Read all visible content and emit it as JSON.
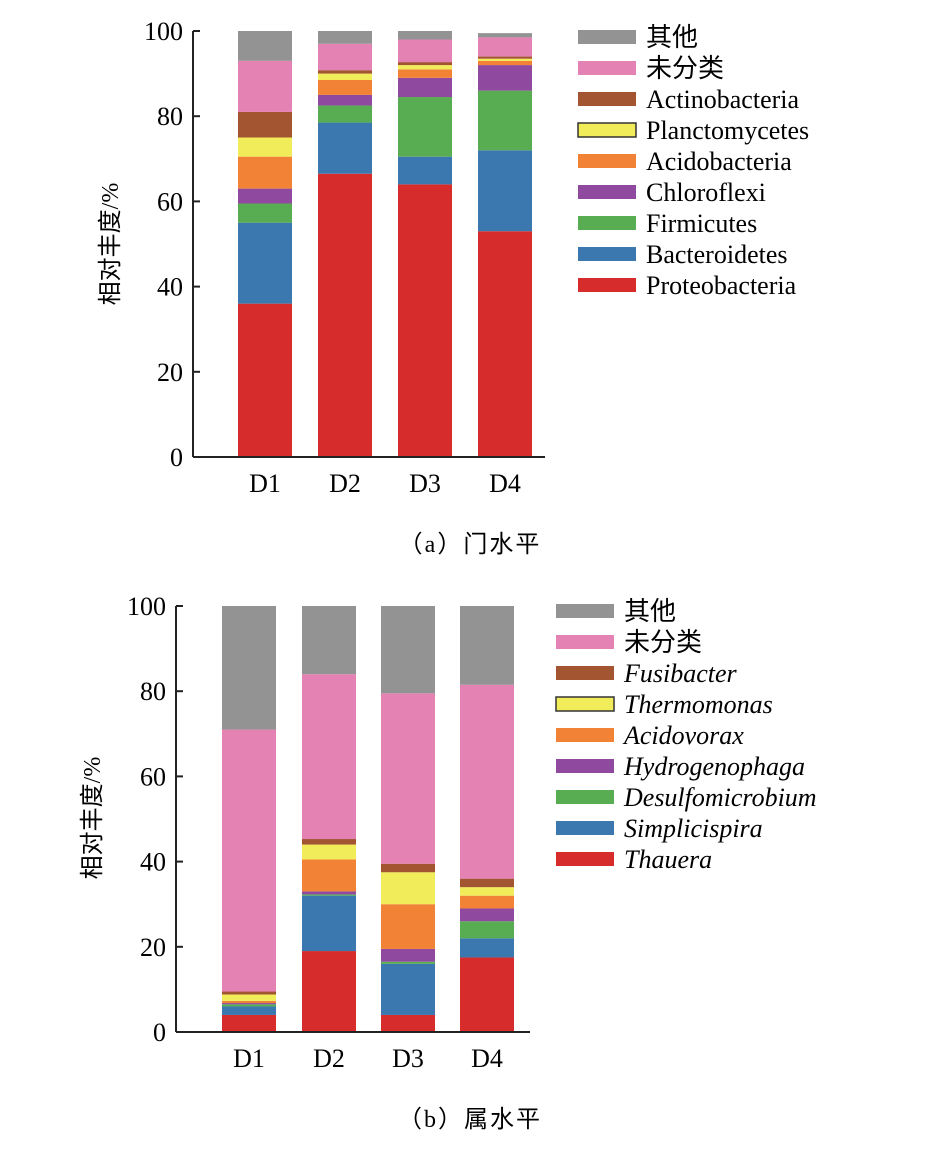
{
  "chart_data": [
    {
      "type": "bar",
      "stacked": true,
      "caption": "（a）门水平",
      "ylabel": "相对丰度/%",
      "ylim": [
        0,
        100
      ],
      "yticks": [
        0,
        20,
        40,
        60,
        80,
        100
      ],
      "categories": [
        "D1",
        "D2",
        "D3",
        "D4"
      ],
      "legend_position": "right",
      "italic_legend": false,
      "series": [
        {
          "name": "Proteobacteria",
          "color": "#d62c2c",
          "values": [
            36,
            66.5,
            64,
            53
          ]
        },
        {
          "name": "Bacteroidetes",
          "color": "#3c78b0",
          "values": [
            19,
            12,
            6.5,
            19
          ]
        },
        {
          "name": "Firmicutes",
          "color": "#58ac52",
          "values": [
            4.5,
            4,
            14,
            14
          ]
        },
        {
          "name": "Chloroflexi",
          "color": "#8f4aa0",
          "values": [
            3.5,
            2.5,
            4.5,
            6
          ]
        },
        {
          "name": "Acidobacteria",
          "color": "#f28235",
          "values": [
            7.5,
            3.5,
            2,
            1
          ]
        },
        {
          "name": "Planctomycetes",
          "color": "#f0ec5a",
          "values": [
            4.5,
            1.5,
            1,
            0.5
          ]
        },
        {
          "name": "Actinobacteria",
          "color": "#a35532",
          "values": [
            6,
            0.8,
            0.7,
            0.5
          ]
        },
        {
          "name": "未分类",
          "color": "#e582b4",
          "values": [
            12,
            6.2,
            5.3,
            4.5
          ]
        },
        {
          "name": "其他",
          "color": "#939393",
          "values": [
            7,
            3,
            2,
            1
          ]
        }
      ]
    },
    {
      "type": "bar",
      "stacked": true,
      "caption": "（b）属水平",
      "ylabel": "相对丰度/%",
      "ylim": [
        0,
        100
      ],
      "yticks": [
        0,
        20,
        40,
        60,
        80,
        100
      ],
      "categories": [
        "D1",
        "D2",
        "D3",
        "D4"
      ],
      "legend_position": "right",
      "italic_legend": true,
      "series": [
        {
          "name": "Thauera",
          "color": "#d62c2c",
          "values": [
            4,
            19,
            4,
            17.5
          ]
        },
        {
          "name": "Simplicispira",
          "color": "#3c78b0",
          "values": [
            2,
            13,
            12,
            4.5
          ]
        },
        {
          "name": "Desulfomicrobium",
          "color": "#58ac52",
          "values": [
            0.5,
            0.3,
            0.5,
            4
          ]
        },
        {
          "name": "Hydrogenophaga",
          "color": "#8f4aa0",
          "values": [
            0.3,
            0.7,
            3,
            3
          ]
        },
        {
          "name": "Acidovorax",
          "color": "#f28235",
          "values": [
            0.5,
            7.5,
            10.5,
            3
          ]
        },
        {
          "name": "Thermomonas",
          "color": "#f0ec5a",
          "values": [
            1.5,
            3.5,
            7.5,
            2
          ]
        },
        {
          "name": "Fusibacter",
          "color": "#a35532",
          "values": [
            0.7,
            1.3,
            2,
            2
          ]
        },
        {
          "name": "未分类",
          "color": "#e582b4",
          "values": [
            61.5,
            38.7,
            40,
            45.5
          ]
        },
        {
          "name": "其他",
          "color": "#939393",
          "values": [
            29,
            16,
            20.5,
            18.5
          ]
        }
      ]
    }
  ]
}
